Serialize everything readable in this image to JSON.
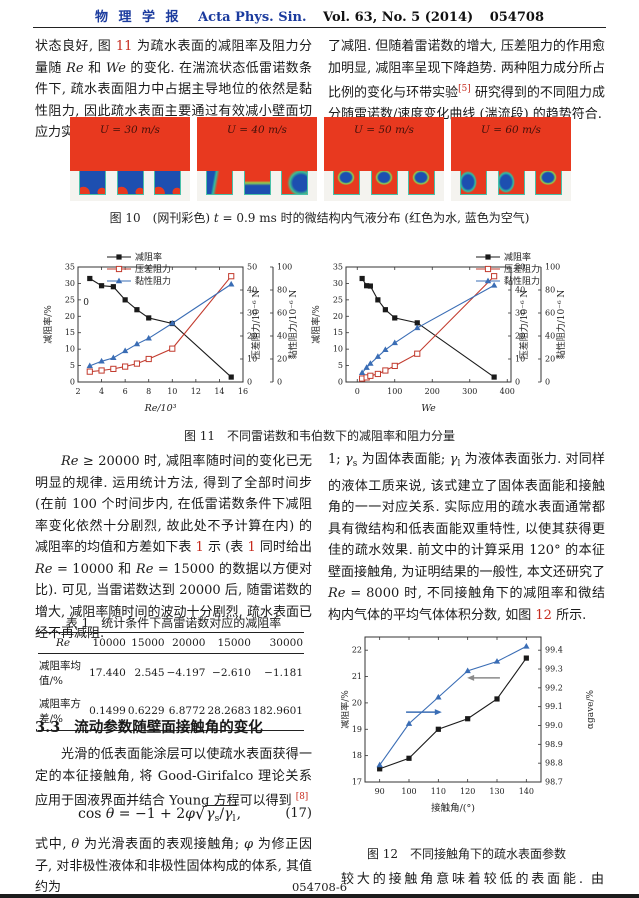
{
  "page": {
    "header": {
      "journal_cn": "物 理 学 报",
      "journal_en": "Acta Phys. Sin.",
      "vol": "Vol. 63, No. 5 (2014)",
      "article_no": "054708"
    },
    "footer": {
      "page_label": "054708-6"
    }
  },
  "colors": {
    "accent_blue": "#1b3b9e",
    "ref_red": "#c5291c",
    "water_red": "#e8391f",
    "air_blue": "#1d4fb0",
    "chart_red": "#c23b2e",
    "chart_blue": "#3a6db5"
  },
  "paragraphs": {
    "left1": [
      {
        "t": "状态良好, 图 "
      },
      {
        "t": "11",
        "s": "r"
      },
      {
        "t": " 为疏水表面的减阻率及阻力分量随 "
      },
      {
        "t": "Re",
        "s": "i"
      },
      {
        "t": " 和 "
      },
      {
        "t": "We",
        "s": "i"
      },
      {
        "t": " 的变化. 在湍流状态低雷诺数条件下, 疏水表面阻力中占据主导地位的依然是黏性阻力, 因此疏水表面主要通过有效减小壁面切应力实现"
      }
    ],
    "right1": [
      {
        "t": "了减阻. 但随着雷诺数的增大, 压差阻力的作用愈加明显, 减阻率呈现下降趋势. 两种阻力成分所占比例的变化与环带实验"
      },
      {
        "t": "[5]",
        "s": "supr"
      },
      {
        "t": " 研究得到的不同阻力成分随雷诺数/速度变化曲线 (湍流段) 的趋势符合."
      }
    ],
    "left2": [
      {
        "t": "Re",
        "s": "i"
      },
      {
        "t": " ≥ 20000 时, 减阻率随时间的变化已无明显的规律. 运用统计方法, 得到了全部时间步 (在前 100 个时间步内, 在低雷诺数条件下减阻率变化依然十分剧烈, 故此处不予计算在内) 的减阻率的均值和方差如下表 "
      },
      {
        "t": "1",
        "s": "r"
      },
      {
        "t": " 示 (表 "
      },
      {
        "t": "1",
        "s": "r"
      },
      {
        "t": " 同时给出 "
      },
      {
        "t": "Re",
        "s": "i"
      },
      {
        "t": " = 10000 和 "
      },
      {
        "t": "Re",
        "s": "i"
      },
      {
        "t": " = 15000 的数据以方便对比). 可见, 当雷诺数达到 20000 后, 随雷诺数的增大, 减阻率随时间的波动十分剧烈, 疏水表面已经不再减阻."
      }
    ],
    "section33": {
      "num": "3.3",
      "title": "流动参数随壁面接触角的变化"
    },
    "left3": [
      {
        "t": "光滑的低表面能涂层可以使疏水表面获得一定的本征接触角, 将 Good-Girifalco 理论关系应用于固液界面并结合 Young 方程可以得到 "
      },
      {
        "t": "[8]",
        "s": "supr"
      }
    ],
    "equation": {
      "pre": [
        {
          "t": "cos "
        },
        {
          "t": "θ",
          "s": "i"
        },
        {
          "t": " = −1 + 2"
        },
        {
          "t": "φ",
          "s": "i"
        }
      ],
      "sqrt": [
        {
          "t": "γ",
          "s": "i"
        },
        {
          "t": "s",
          "s": "sub"
        },
        {
          "t": "/"
        },
        {
          "t": "γ",
          "s": "i"
        },
        {
          "t": "l",
          "s": "sub"
        }
      ],
      "tail": ",",
      "number": "(17)"
    },
    "left4": [
      {
        "t": "式中, "
      },
      {
        "t": "θ",
        "s": "i"
      },
      {
        "t": " 为光滑表面的表观接触角; "
      },
      {
        "t": "φ",
        "s": "i"
      },
      {
        "t": " 为修正因子, 对非极性液体和非极性固体构成的体系, 其值约为"
      }
    ],
    "right2": [
      {
        "t": "1; "
      },
      {
        "t": "γ",
        "s": "i"
      },
      {
        "t": "s",
        "s": "sub"
      },
      {
        "t": " 为固体表面能; "
      },
      {
        "t": "γ",
        "s": "i"
      },
      {
        "t": "l",
        "s": "sub"
      },
      {
        "t": " 为液体表面张力. 对同样的液体工质来说, 该式建立了固体表面能和接触角的一一对应关系. 实际应用的疏水表面通常都具有微结构和低表面能双重特性, 以使其获得更佳的疏水效果. 前文中的计算采用 120° 的本征壁面接触角, 为证明结果的一般性, 本文还研究了 "
      },
      {
        "t": "Re",
        "s": "i"
      },
      {
        "t": " = 8000 时, 不同接触角下的减阻率和微结构内气体的平均气体体积分数, 如图 "
      },
      {
        "t": "12",
        "s": "r"
      },
      {
        "t": " 所示."
      }
    ],
    "right3": [
      {
        "t": "较大的接触角意味着较低的表面能. 由"
      }
    ]
  },
  "figure10": {
    "panels": [
      {
        "label": "U = 30 m/s",
        "grooves": [
          "gA",
          "gA",
          "gA"
        ]
      },
      {
        "label": "U = 40 m/s",
        "grooves": [
          "gB",
          "gC",
          "gD"
        ]
      },
      {
        "label": "U = 50 m/s",
        "grooves": [
          "gE",
          "gE",
          "gE"
        ]
      },
      {
        "label": "U = 60 m/s",
        "grooves": [
          "gF",
          "gF",
          "gE"
        ]
      }
    ],
    "caption": [
      {
        "t": "图 10"
      },
      {
        "t": "　(网刊彩色) "
      },
      {
        "t": "t",
        "s": "i"
      },
      {
        "t": " = 0.9 ms 时的微结构内气液分布 (红色为水, 蓝色为空气)"
      }
    ]
  },
  "figure11": {
    "caption": [
      {
        "t": "图 11"
      },
      {
        "t": "　不同雷诺数和韦伯数下的减阻率和阻力分量"
      }
    ]
  },
  "figure12": {
    "caption": [
      {
        "t": "图 12"
      },
      {
        "t": "　不同接触角下的疏水表面参数"
      }
    ]
  },
  "table1": {
    "caption": [
      {
        "t": "表 1"
      },
      {
        "t": "　统计条件下高雷诺数对应的减阻率"
      }
    ],
    "columns": [
      "Re",
      "10000",
      "15000",
      "20000",
      "15000",
      "30000"
    ],
    "rows": [
      [
        "减阻率均值/%",
        "17.440",
        "2.545",
        "−4.197",
        "−2.610",
        "−1.181"
      ],
      [
        "减阻率方差/%",
        "0.1499",
        "0.6229",
        "6.8772",
        "28.2683",
        "182.9601"
      ]
    ]
  },
  "chart_data": [
    {
      "id": "fig11a",
      "type": "line",
      "xlabel": "Re/10³",
      "xlabel_italic": true,
      "xlim": [
        2,
        16
      ],
      "xticks": [
        "2",
        "4",
        "6",
        "8",
        "10",
        "12",
        "14",
        "16"
      ],
      "x": [
        3,
        4,
        5,
        6,
        7,
        8,
        10,
        15
      ],
      "axes": {
        "left": {
          "label": "减阻率/%",
          "lim": [
            0,
            35
          ],
          "ticks": [
            "0",
            "5",
            "10",
            "15",
            "20",
            "25",
            "30",
            "35"
          ]
        },
        "right1": {
          "label": "压差阻力/10⁻⁶ N",
          "lim": [
            0,
            50
          ],
          "ticks": [
            "0",
            "10",
            "20",
            "30",
            "40",
            "50"
          ]
        },
        "right2": {
          "label": "黏性阻力/10⁻⁶ N",
          "lim": [
            0,
            100
          ],
          "ticks": [
            "0",
            "20",
            "40",
            "60",
            "80",
            "100"
          ]
        }
      },
      "series": [
        {
          "name": "减阻率",
          "axis": "left",
          "color": "#1a1a1a",
          "marker": "fsq",
          "values": [
            31.5,
            29.3,
            29.0,
            25.0,
            22.0,
            19.5,
            17.8,
            1.5
          ]
        },
        {
          "name": "压差阻力",
          "axis": "right1",
          "color": "#c23b2e",
          "marker": "osq",
          "values": [
            4.5,
            5.0,
            5.7,
            6.7,
            8.0,
            10.0,
            14.5,
            46.0
          ]
        },
        {
          "name": "黏性阻力",
          "axis": "right2",
          "color": "#3a6db5",
          "marker": "ftr",
          "values": [
            14,
            18,
            21,
            27,
            33,
            38,
            51,
            85
          ]
        }
      ],
      "annotations": [
        {
          "text": "0",
          "x": 2.45,
          "y": 23.5
        }
      ]
    },
    {
      "id": "fig11b",
      "type": "line",
      "xlabel": "We",
      "xlabel_italic": true,
      "xlim": [
        -30,
        410
      ],
      "xticks": [
        "0",
        "100",
        "200",
        "300",
        "400"
      ],
      "x": [
        13,
        25,
        35,
        55,
        75,
        100,
        160,
        365
      ],
      "axes": {
        "left": {
          "label": "减阻率/%",
          "lim": [
            0,
            35
          ],
          "ticks": [
            "0",
            "5",
            "10",
            "15",
            "20",
            "25",
            "30",
            "35"
          ]
        },
        "right1": {
          "label": "压差阻力/10⁻⁶ N",
          "lim": [
            0,
            50
          ],
          "ticks": [
            "0",
            "10",
            "20",
            "30",
            "40",
            "50"
          ]
        },
        "right2": {
          "label": "黏性阻力/10⁻⁶ N",
          "lim": [
            0,
            100
          ],
          "ticks": [
            "0",
            "20",
            "40",
            "60",
            "80",
            "100"
          ]
        }
      },
      "series": [
        {
          "name": "减阻率",
          "axis": "left",
          "color": "#1a1a1a",
          "marker": "fsq",
          "values": [
            31.5,
            29.3,
            29.2,
            25.0,
            22.0,
            19.5,
            18.0,
            1.5
          ]
        },
        {
          "name": "压差阻力",
          "axis": "right1",
          "color": "#c23b2e",
          "marker": "osq",
          "values": [
            1.5,
            2.0,
            2.7,
            3.5,
            5.0,
            7.0,
            12.3,
            46.0
          ]
        },
        {
          "name": "黏性阻力",
          "axis": "right2",
          "color": "#3a6db5",
          "marker": "ftr",
          "values": [
            8,
            12.5,
            16,
            22,
            28,
            34,
            47,
            84
          ]
        }
      ]
    },
    {
      "id": "fig12",
      "type": "line",
      "xlabel": "接触角/(°)",
      "xlabel_italic": false,
      "xlim": [
        85,
        145
      ],
      "xticks": [
        "90",
        "100",
        "110",
        "120",
        "130",
        "140"
      ],
      "x": [
        90,
        100,
        110,
        120,
        130,
        140
      ],
      "axes": {
        "left": {
          "label": "减阻率/%",
          "lim": [
            17,
            22.5
          ],
          "ticks": [
            "17",
            "18",
            "19",
            "20",
            "21",
            "22"
          ]
        },
        "right1": {
          "label": "αgave/%",
          "lim": [
            98.7,
            99.47
          ],
          "ticks": [
            "98.7",
            "98.8",
            "98.9",
            "99.0",
            "99.1",
            "99.2",
            "99.3",
            "99.4"
          ]
        }
      },
      "series": [
        {
          "name": "减阻率",
          "axis": "left",
          "color": "#1a1a1a",
          "marker": "fsq",
          "values": [
            17.5,
            17.9,
            19.0,
            19.4,
            20.15,
            21.7
          ]
        },
        {
          "name": "αgave",
          "axis": "right1",
          "color": "#3a6db5",
          "marker": "ftr",
          "values": [
            98.79,
            99.01,
            99.15,
            99.29,
            99.34,
            99.42
          ]
        }
      ],
      "arrows": [
        {
          "from": [
            131,
            20.95
          ],
          "to": [
            120.5,
            20.95
          ],
          "color": "#8a8a8a"
        },
        {
          "from": [
            99,
            19.65
          ],
          "to": [
            110.5,
            19.65
          ],
          "color": "#3a6db5"
        }
      ]
    }
  ]
}
